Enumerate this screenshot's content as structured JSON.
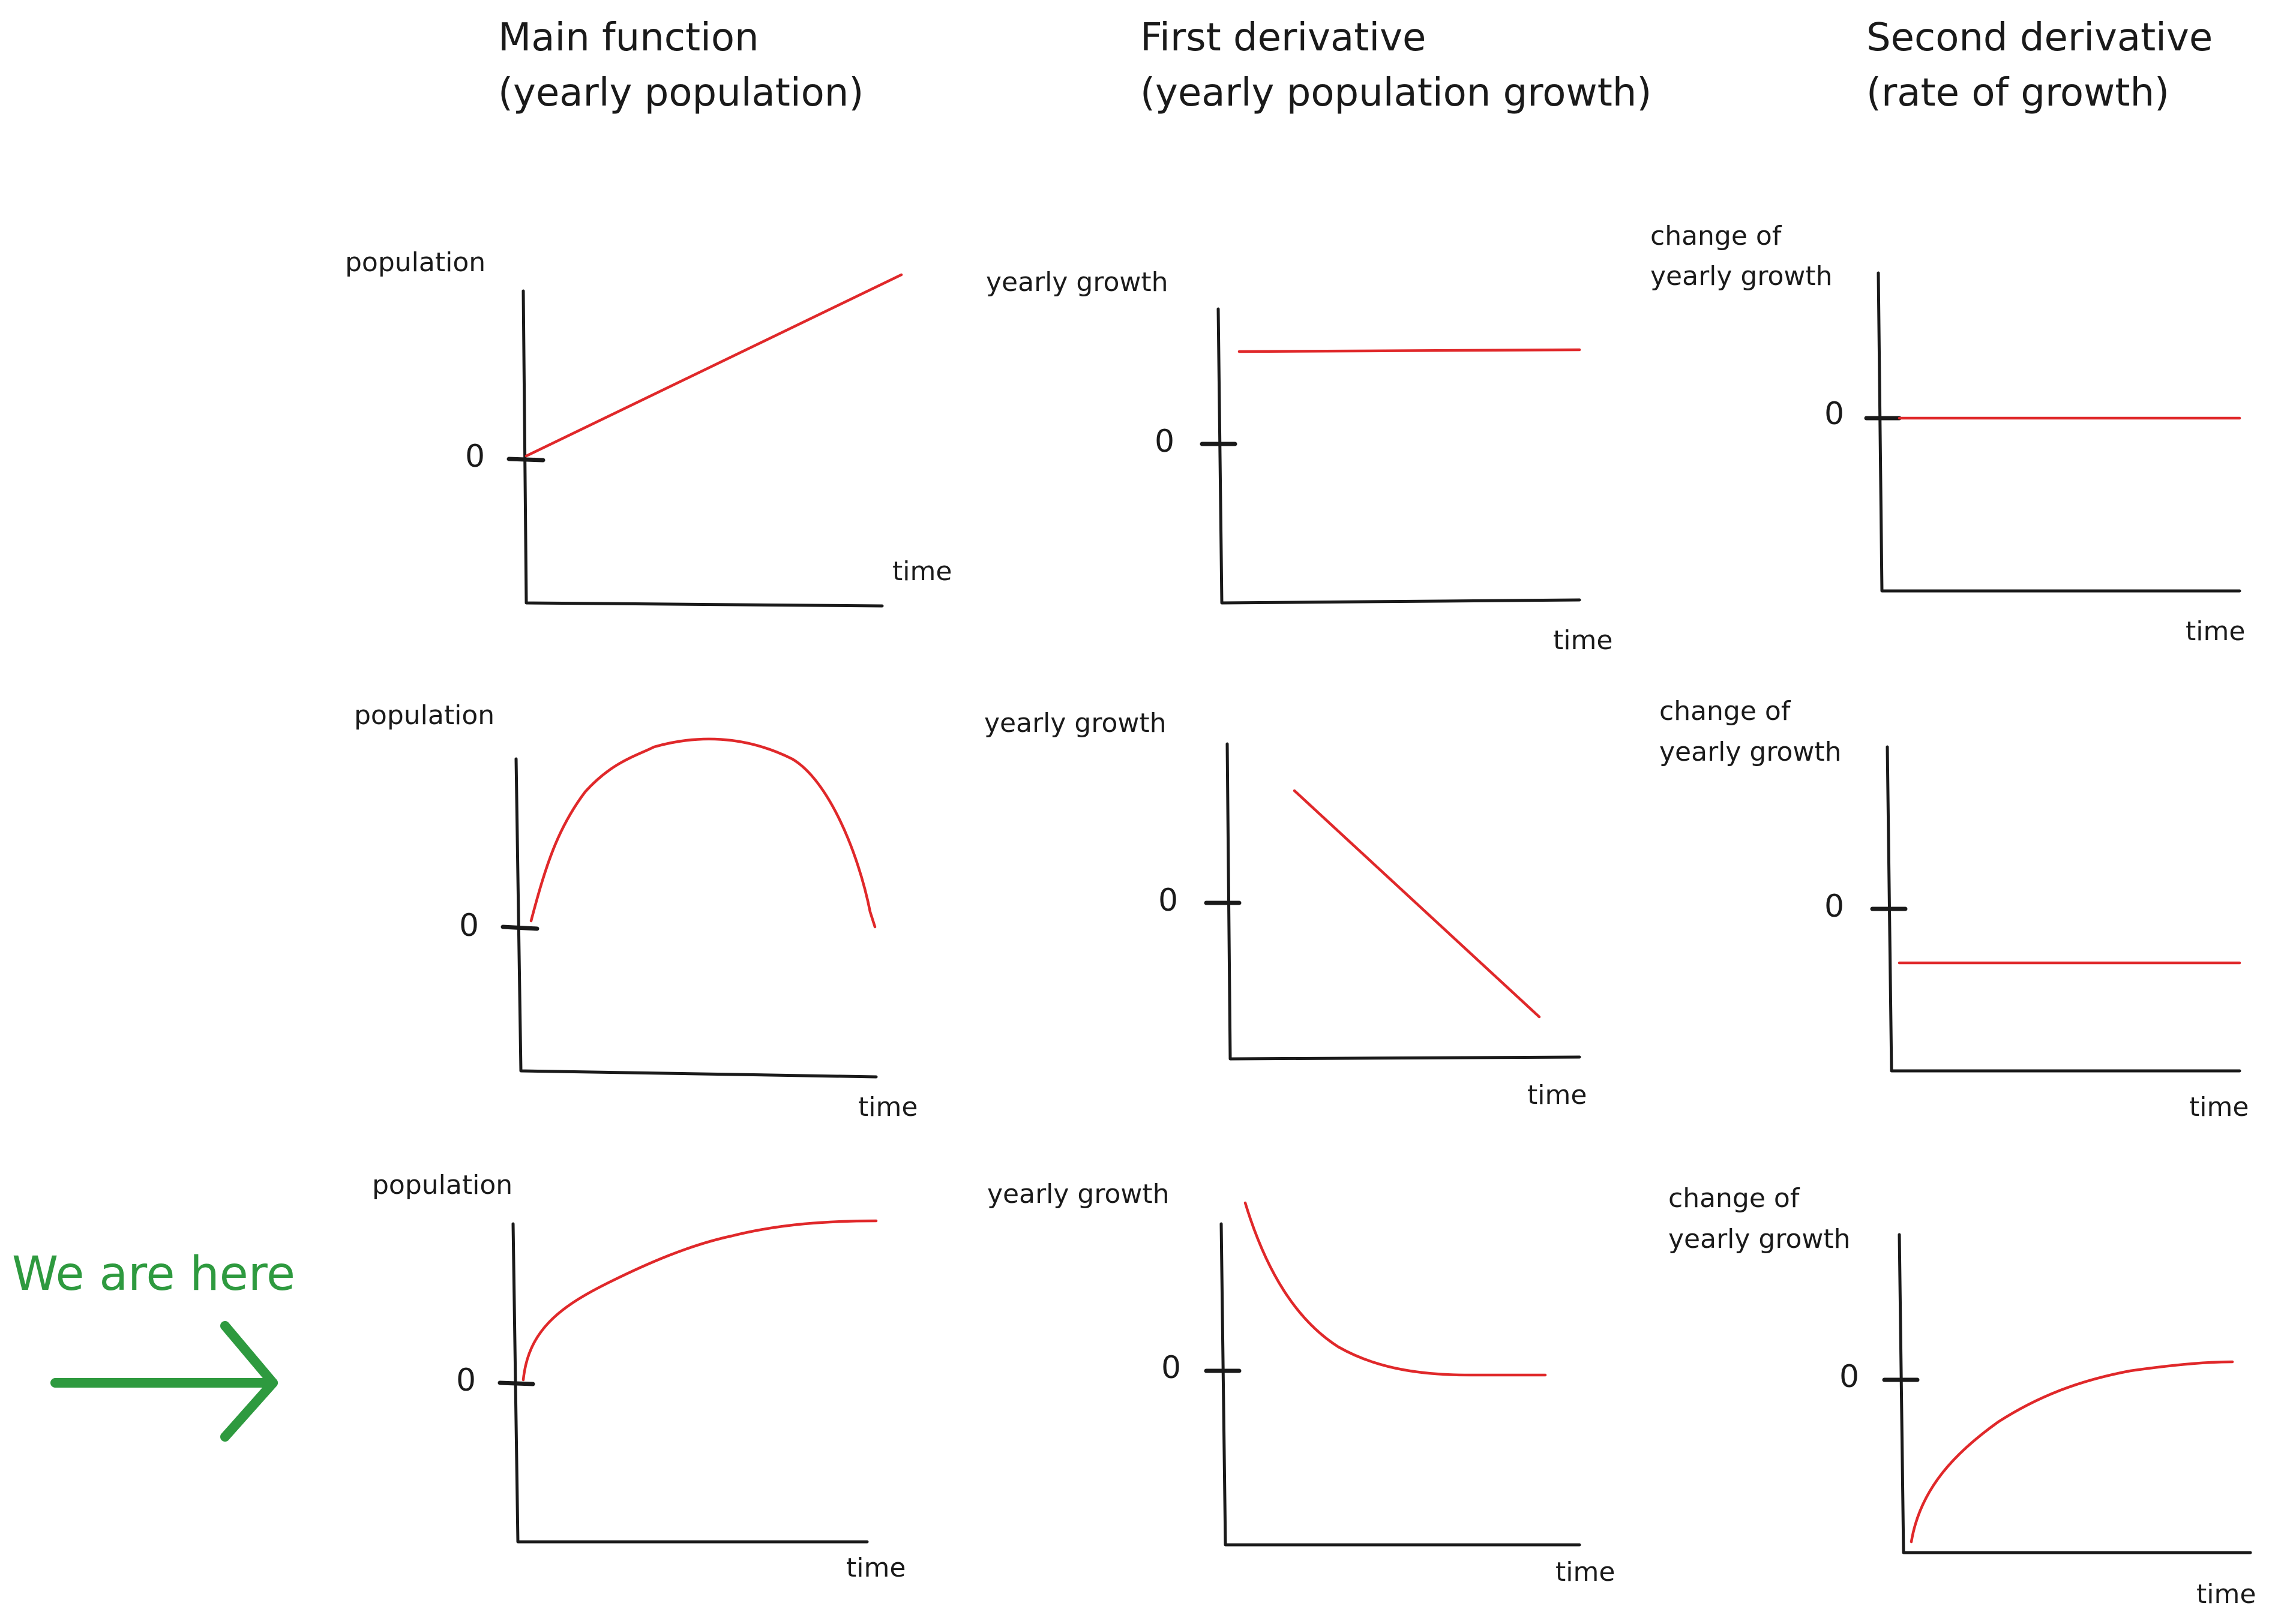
{
  "columns": [
    {
      "title_line1": "Main function",
      "title_line2": "(yearly population)"
    },
    {
      "title_line1": "First derivative",
      "title_line2": "(yearly population growth)"
    },
    {
      "title_line1": "Second derivative",
      "title_line2": "(rate of growth)"
    }
  ],
  "labels": {
    "population": "population",
    "yearly_growth": "yearly growth",
    "change_of": "change of",
    "time": "time",
    "zero": "0"
  },
  "marker": {
    "text": "We are here",
    "color": "#2e9a3f"
  },
  "colors": {
    "curve": "#e0282a",
    "ink": "#1a1a1a"
  },
  "rows": [
    {
      "main": "linear-increase",
      "first": "constant-positive",
      "second": "zero"
    },
    {
      "main": "rise-then-fall",
      "first": "linear-decrease",
      "second": "constant-negative"
    },
    {
      "main": "concave-increase-plateau",
      "first": "decay-to-zero",
      "second": "negative-rising-to-zero"
    }
  ]
}
